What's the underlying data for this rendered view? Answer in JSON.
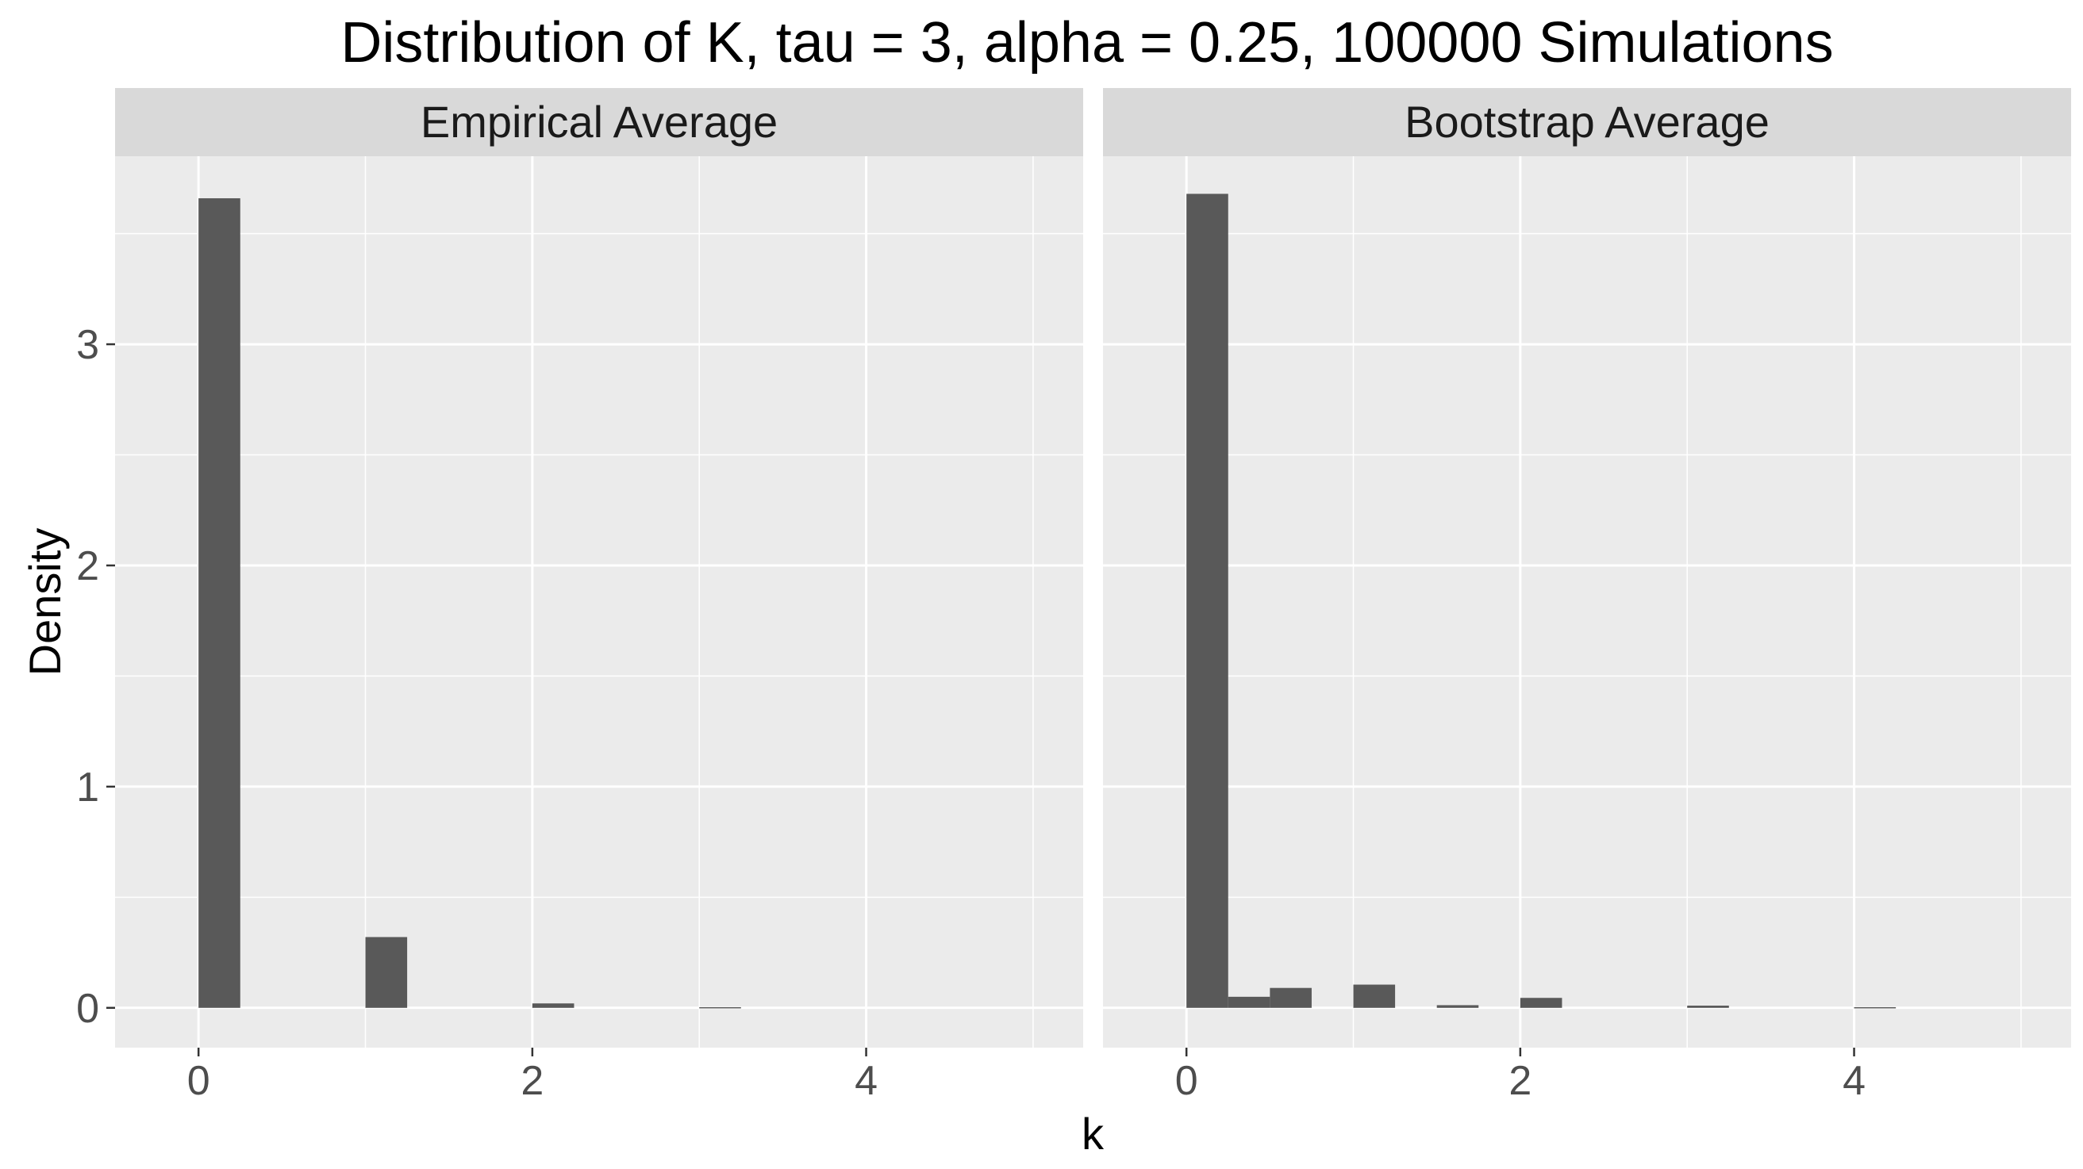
{
  "chart_data": {
    "type": "bar",
    "title": "Distribution of K, tau = 3, alpha = 0.25, 100000 Simulations",
    "xlabel": "k",
    "ylabel": "Density",
    "xlim": [
      -0.5,
      5.3
    ],
    "ylim": [
      -0.18,
      3.85
    ],
    "x_ticks": [
      0,
      2,
      4
    ],
    "x_tick_labels": [
      "0",
      "2",
      "4"
    ],
    "y_ticks": [
      0,
      1,
      2,
      3
    ],
    "y_tick_labels": [
      "0",
      "1",
      "2",
      "3"
    ],
    "x_minor_breaks": [
      1,
      3,
      5
    ],
    "y_minor_breaks": [
      0.5,
      1.5,
      2.5,
      3.5
    ],
    "bin_width": 0.25,
    "grid": true,
    "bar_color": "#595959",
    "panel_background": "#ebebeb",
    "strip_background": "#d9d9d9",
    "grid_color": "#ffffff",
    "panels": [
      {
        "name": "Empirical Average",
        "x": [
          0,
          1,
          2,
          3
        ],
        "values": [
          3.66,
          0.32,
          0.02,
          0.003
        ]
      },
      {
        "name": "Bootstrap Average",
        "x": [
          0,
          0.25,
          0.5,
          1,
          1.5,
          2,
          3,
          4
        ],
        "values": [
          3.68,
          0.05,
          0.09,
          0.105,
          0.012,
          0.045,
          0.01,
          0.003
        ]
      }
    ]
  }
}
